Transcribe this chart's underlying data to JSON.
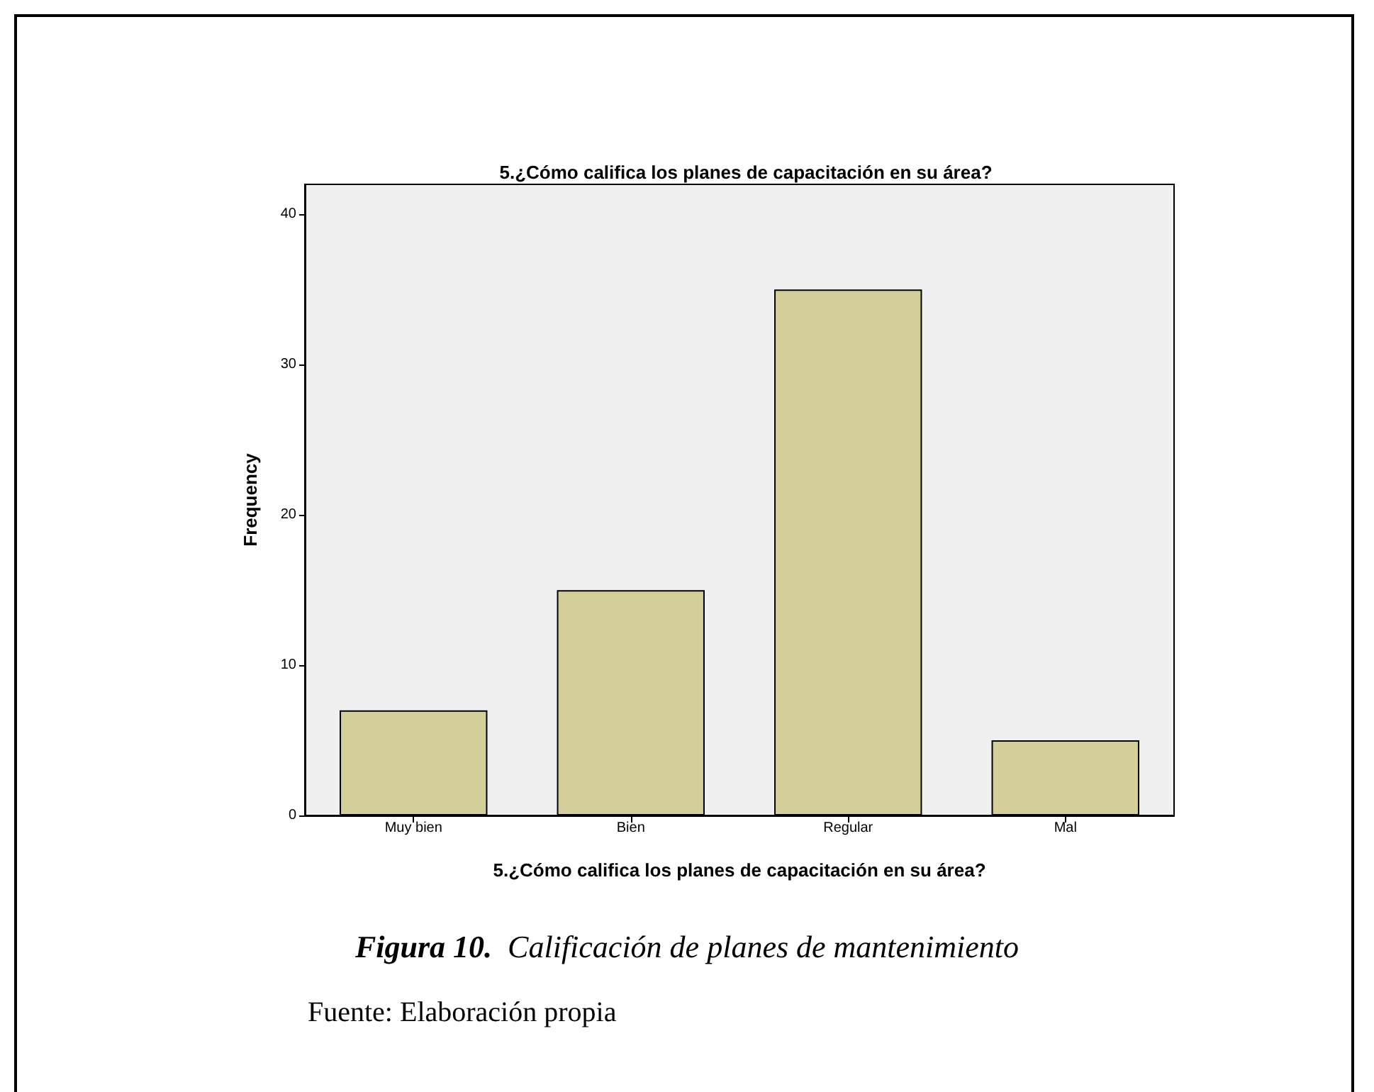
{
  "chart_data": {
    "type": "bar",
    "title": "5.¿Cómo califica los planes de capacitación en su área?",
    "xlabel": "5.¿Cómo califica los planes de capacitación en su área?",
    "ylabel": "Frequency",
    "categories": [
      "Muy bien",
      "Bien",
      "Regular",
      "Mal"
    ],
    "values": [
      7,
      15,
      35,
      5
    ],
    "color": "#d4cf98",
    "ylim": [
      0,
      42
    ],
    "yticks": [
      0,
      10,
      20,
      30,
      40
    ],
    "grid": false,
    "annotations": [
      "Figura 10.",
      "Calificación de planes de mantenimiento",
      "Fuente: Elaboración propia"
    ]
  }
}
